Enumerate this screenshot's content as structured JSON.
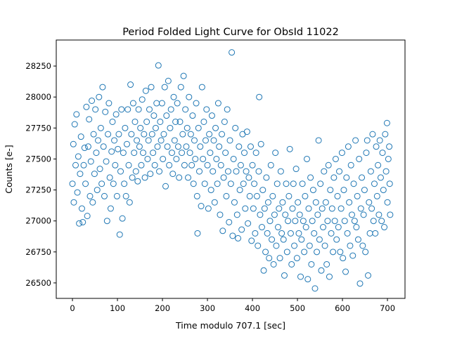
{
  "chart_data": {
    "type": "scatter",
    "title": "Period Folded Light Curve for ObsId 11022",
    "xlabel": "Time modulo 707.1 [sec]",
    "ylabel": "Counts [e-]",
    "xlim": [
      -36,
      739
    ],
    "ylim": [
      26375,
      28460
    ],
    "xticks": [
      0,
      100,
      200,
      300,
      400,
      500,
      600,
      700
    ],
    "yticks": [
      26500,
      26750,
      27000,
      27250,
      27500,
      27750,
      28000,
      28250
    ],
    "grid": false,
    "marker": "open-circle",
    "color": "#1f77b4",
    "points": [
      [
        0,
        27300
      ],
      [
        2,
        27620
      ],
      [
        3,
        27150
      ],
      [
        5,
        27780
      ],
      [
        7,
        27450
      ],
      [
        9,
        27860
      ],
      [
        11,
        27230
      ],
      [
        13,
        27520
      ],
      [
        15,
        26980
      ],
      [
        17,
        27380
      ],
      [
        19,
        27680
      ],
      [
        21,
        27100
      ],
      [
        23,
        26990
      ],
      [
        25,
        27450
      ],
      [
        27,
        27590
      ],
      [
        29,
        27300
      ],
      [
        31,
        27920
      ],
      [
        33,
        27040
      ],
      [
        35,
        27600
      ],
      [
        37,
        27820
      ],
      [
        39,
        27200
      ],
      [
        41,
        27480
      ],
      [
        43,
        27970
      ],
      [
        45,
        27150
      ],
      [
        47,
        27700
      ],
      [
        49,
        27380
      ],
      [
        51,
        27900
      ],
      [
        53,
        27550
      ],
      [
        55,
        27250
      ],
      [
        57,
        27650
      ],
      [
        59,
        28000
      ],
      [
        61,
        27420
      ],
      [
        63,
        27750
      ],
      [
        65,
        27300
      ],
      [
        67,
        28080
      ],
      [
        69,
        27600
      ],
      [
        71,
        27200
      ],
      [
        73,
        27880
      ],
      [
        75,
        27480
      ],
      [
        77,
        27000
      ],
      [
        79,
        27700
      ],
      [
        81,
        27950
      ],
      [
        83,
        27350
      ],
      [
        85,
        27100
      ],
      [
        87,
        27560
      ],
      [
        89,
        27800
      ],
      [
        91,
        27300
      ],
      [
        93,
        27650
      ],
      [
        95,
        27450
      ],
      [
        97,
        27860
      ],
      [
        99,
        27200
      ],
      [
        101,
        27580
      ],
      [
        103,
        27700
      ],
      [
        105,
        26890
      ],
      [
        107,
        27400
      ],
      [
        109,
        27900
      ],
      [
        111,
        27020
      ],
      [
        113,
        27550
      ],
      [
        115,
        27300
      ],
      [
        117,
        27750
      ],
      [
        119,
        27200
      ],
      [
        121,
        27620
      ],
      [
        123,
        27900
      ],
      [
        125,
        27450
      ],
      [
        127,
        27150
      ],
      [
        129,
        28100
      ],
      [
        131,
        27700
      ],
      [
        133,
        27350
      ],
      [
        135,
        27950
      ],
      [
        137,
        27550
      ],
      [
        139,
        27800
      ],
      [
        141,
        27400
      ],
      [
        143,
        27650
      ],
      [
        145,
        27320
      ],
      [
        147,
        27900
      ],
      [
        149,
        27600
      ],
      [
        151,
        27750
      ],
      [
        153,
        27450
      ],
      [
        155,
        27980
      ],
      [
        157,
        27550
      ],
      [
        159,
        27700
      ],
      [
        161,
        27350
      ],
      [
        163,
        28050
      ],
      [
        165,
        27800
      ],
      [
        167,
        27500
      ],
      [
        169,
        27650
      ],
      [
        171,
        27900
      ],
      [
        173,
        27380
      ],
      [
        175,
        28080
      ],
      [
        177,
        27700
      ],
      [
        179,
        27550
      ],
      [
        181,
        27850
      ],
      [
        183,
        27450
      ],
      [
        185,
        27750
      ],
      [
        187,
        27950
      ],
      [
        189,
        27600
      ],
      [
        191,
        28255
      ],
      [
        193,
        27400
      ],
      [
        195,
        27800
      ],
      [
        197,
        27650
      ],
      [
        199,
        27950
      ],
      [
        201,
        27500
      ],
      [
        203,
        27700
      ],
      [
        205,
        28080
      ],
      [
        207,
        27280
      ],
      [
        209,
        27850
      ],
      [
        211,
        27600
      ],
      [
        213,
        28130
      ],
      [
        215,
        27450
      ],
      [
        217,
        27750
      ],
      [
        219,
        27900
      ],
      [
        221,
        27550
      ],
      [
        223,
        27380
      ],
      [
        225,
        28000
      ],
      [
        227,
        27650
      ],
      [
        229,
        27800
      ],
      [
        231,
        27500
      ],
      [
        233,
        27950
      ],
      [
        235,
        27600
      ],
      [
        237,
        27350
      ],
      [
        239,
        27800
      ],
      [
        241,
        28080
      ],
      [
        243,
        27550
      ],
      [
        245,
        27700
      ],
      [
        247,
        28170
      ],
      [
        249,
        27450
      ],
      [
        251,
        27900
      ],
      [
        253,
        27600
      ],
      [
        255,
        27750
      ],
      [
        257,
        27350
      ],
      [
        259,
        28000
      ],
      [
        261,
        27550
      ],
      [
        263,
        27700
      ],
      [
        265,
        27450
      ],
      [
        267,
        27850
      ],
      [
        269,
        27300
      ],
      [
        271,
        27650
      ],
      [
        273,
        27500
      ],
      [
        275,
        27950
      ],
      [
        277,
        27200
      ],
      [
        278,
        26900
      ],
      [
        280,
        27750
      ],
      [
        282,
        27400
      ],
      [
        284,
        27600
      ],
      [
        286,
        27120
      ],
      [
        288,
        28080
      ],
      [
        290,
        27500
      ],
      [
        292,
        27800
      ],
      [
        294,
        27300
      ],
      [
        296,
        27650
      ],
      [
        298,
        27900
      ],
      [
        300,
        27450
      ],
      [
        302,
        27100
      ],
      [
        304,
        27700
      ],
      [
        306,
        27550
      ],
      [
        308,
        27250
      ],
      [
        310,
        27850
      ],
      [
        312,
        27400
      ],
      [
        314,
        27650
      ],
      [
        316,
        27150
      ],
      [
        318,
        27750
      ],
      [
        320,
        27500
      ],
      [
        322,
        27300
      ],
      [
        324,
        27950
      ],
      [
        326,
        27600
      ],
      [
        328,
        27050
      ],
      [
        330,
        27450
      ],
      [
        332,
        27700
      ],
      [
        334,
        26920
      ],
      [
        336,
        27350
      ],
      [
        338,
        27800
      ],
      [
        340,
        27550
      ],
      [
        342,
        27200
      ],
      [
        344,
        27900
      ],
      [
        346,
        27400
      ],
      [
        348,
        26990
      ],
      [
        350,
        27650
      ],
      [
        352,
        27300
      ],
      [
        354,
        28360
      ],
      [
        356,
        26880
      ],
      [
        358,
        27500
      ],
      [
        360,
        27150
      ],
      [
        362,
        27750
      ],
      [
        364,
        27400
      ],
      [
        366,
        27050
      ],
      [
        368,
        26860
      ],
      [
        370,
        27600
      ],
      [
        372,
        27250
      ],
      [
        374,
        27450
      ],
      [
        376,
        26930
      ],
      [
        378,
        27700
      ],
      [
        380,
        27300
      ],
      [
        382,
        27550
      ],
      [
        384,
        27100
      ],
      [
        386,
        27400
      ],
      [
        388,
        27720
      ],
      [
        390,
        26980
      ],
      [
        392,
        27350
      ],
      [
        394,
        27200
      ],
      [
        396,
        27600
      ],
      [
        398,
        26840
      ],
      [
        400,
        27450
      ],
      [
        402,
        27100
      ],
      [
        404,
        27300
      ],
      [
        406,
        26900
      ],
      [
        408,
        27550
      ],
      [
        410,
        27200
      ],
      [
        412,
        26800
      ],
      [
        414,
        27400
      ],
      [
        415,
        28000
      ],
      [
        417,
        27050
      ],
      [
        419,
        27620
      ],
      [
        421,
        26950
      ],
      [
        423,
        27250
      ],
      [
        425,
        26600
      ],
      [
        427,
        27100
      ],
      [
        429,
        26750
      ],
      [
        431,
        27350
      ],
      [
        433,
        26900
      ],
      [
        435,
        27150
      ],
      [
        437,
        26700
      ],
      [
        439,
        27000
      ],
      [
        441,
        27450
      ],
      [
        443,
        26850
      ],
      [
        445,
        27200
      ],
      [
        447,
        26650
      ],
      [
        449,
        27050
      ],
      [
        451,
        27550
      ],
      [
        453,
        26800
      ],
      [
        455,
        27300
      ],
      [
        457,
        26950
      ],
      [
        459,
        27100
      ],
      [
        461,
        26700
      ],
      [
        463,
        27400
      ],
      [
        465,
        26900
      ],
      [
        467,
        27150
      ],
      [
        469,
        26850
      ],
      [
        471,
        26560
      ],
      [
        473,
        27050
      ],
      [
        475,
        27300
      ],
      [
        477,
        26750
      ],
      [
        479,
        27000
      ],
      [
        481,
        27200
      ],
      [
        483,
        27580
      ],
      [
        485,
        26900
      ],
      [
        487,
        26650
      ],
      [
        489,
        27100
      ],
      [
        491,
        27300
      ],
      [
        493,
        26800
      ],
      [
        495,
        27000
      ],
      [
        497,
        27420
      ],
      [
        499,
        26700
      ],
      [
        501,
        27150
      ],
      [
        503,
        26900
      ],
      [
        505,
        27050
      ],
      [
        507,
        26550
      ],
      [
        509,
        26850
      ],
      [
        511,
        27300
      ],
      [
        513,
        27000
      ],
      [
        515,
        26750
      ],
      [
        517,
        27200
      ],
      [
        519,
        26950
      ],
      [
        521,
        27500
      ],
      [
        523,
        26530
      ],
      [
        525,
        27100
      ],
      [
        527,
        26800
      ],
      [
        529,
        27350
      ],
      [
        531,
        26650
      ],
      [
        533,
        27000
      ],
      [
        535,
        27250
      ],
      [
        537,
        26900
      ],
      [
        539,
        26455
      ],
      [
        541,
        27150
      ],
      [
        543,
        26750
      ],
      [
        545,
        27050
      ],
      [
        547,
        27650
      ],
      [
        549,
        26850
      ],
      [
        551,
        27300
      ],
      [
        553,
        26600
      ],
      [
        555,
        27100
      ],
      [
        557,
        26950
      ],
      [
        559,
        27400
      ],
      [
        561,
        26800
      ],
      [
        563,
        27150
      ],
      [
        565,
        26650
      ],
      [
        567,
        27000
      ],
      [
        569,
        27450
      ],
      [
        571,
        26550
      ],
      [
        573,
        27250
      ],
      [
        575,
        26900
      ],
      [
        577,
        27100
      ],
      [
        579,
        26750
      ],
      [
        581,
        27350
      ],
      [
        583,
        27000
      ],
      [
        585,
        27500
      ],
      [
        587,
        26850
      ],
      [
        589,
        27200
      ],
      [
        591,
        26950
      ],
      [
        593,
        27400
      ],
      [
        595,
        26750
      ],
      [
        597,
        27100
      ],
      [
        599,
        27550
      ],
      [
        601,
        26700
      ],
      [
        603,
        27250
      ],
      [
        605,
        27000
      ],
      [
        607,
        26590
      ],
      [
        609,
        27350
      ],
      [
        611,
        26900
      ],
      [
        613,
        27600
      ],
      [
        615,
        27150
      ],
      [
        617,
        26800
      ],
      [
        619,
        27450
      ],
      [
        621,
        27050
      ],
      [
        623,
        26720
      ],
      [
        625,
        27300
      ],
      [
        627,
        27000
      ],
      [
        629,
        27650
      ],
      [
        631,
        26950
      ],
      [
        633,
        27200
      ],
      [
        635,
        26850
      ],
      [
        637,
        27500
      ],
      [
        639,
        26495
      ],
      [
        641,
        27100
      ],
      [
        643,
        27350
      ],
      [
        645,
        26800
      ],
      [
        647,
        27050
      ],
      [
        649,
        27250
      ],
      [
        651,
        26750
      ],
      [
        653,
        27550
      ],
      [
        655,
        27650
      ],
      [
        657,
        26560
      ],
      [
        659,
        27150
      ],
      [
        661,
        26900
      ],
      [
        663,
        27400
      ],
      [
        665,
        27100
      ],
      [
        667,
        27700
      ],
      [
        669,
        27000
      ],
      [
        671,
        27300
      ],
      [
        673,
        26900
      ],
      [
        675,
        27600
      ],
      [
        677,
        27200
      ],
      [
        679,
        27450
      ],
      [
        681,
        27050
      ],
      [
        683,
        27650
      ],
      [
        685,
        27350
      ],
      [
        687,
        27000
      ],
      [
        689,
        27550
      ],
      [
        691,
        27250
      ],
      [
        693,
        26950
      ],
      [
        695,
        27700
      ],
      [
        697,
        27400
      ],
      [
        699,
        27790
      ],
      [
        700,
        27150
      ],
      [
        702,
        27500
      ],
      [
        704,
        27600
      ],
      [
        705,
        27300
      ],
      [
        706,
        27050
      ]
    ]
  }
}
